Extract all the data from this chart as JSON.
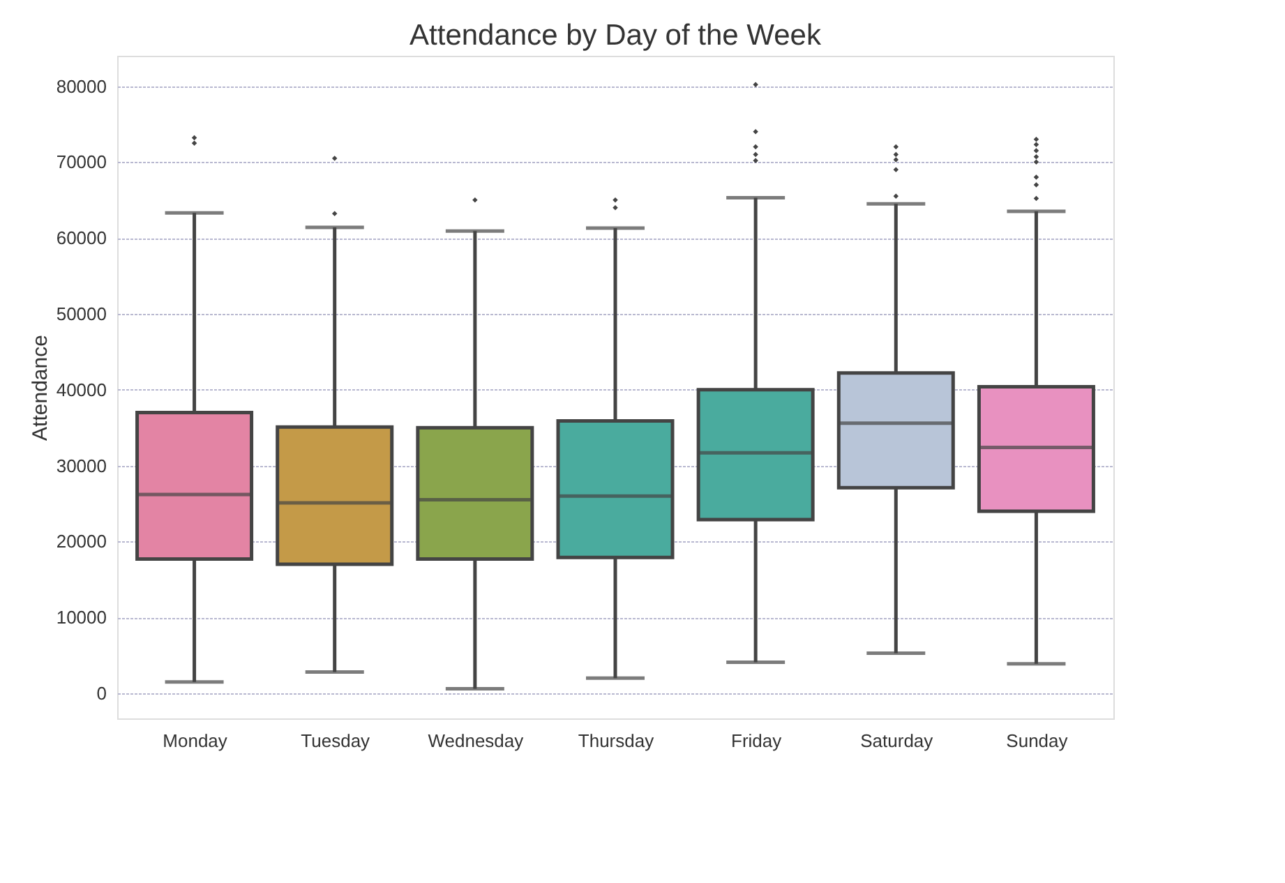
{
  "chart_data": {
    "type": "box",
    "title": "Attendance by Day of the Week",
    "ylabel": "Attendance",
    "categories": [
      "Monday",
      "Tuesday",
      "Wednesday",
      "Thursday",
      "Friday",
      "Saturday",
      "Sunday"
    ],
    "colors": [
      "#e384a4",
      "#c49a48",
      "#8aa54c",
      "#4aab9e",
      "#4aab9e",
      "#b8c5d8",
      "#e891c0"
    ],
    "boxes": [
      {
        "low": 1500,
        "q1": 17700,
        "median": 26200,
        "q3": 37000,
        "high": 63300,
        "outliers": [
          72500,
          73200
        ]
      },
      {
        "low": 2800,
        "q1": 17000,
        "median": 25100,
        "q3": 35100,
        "high": 61400,
        "outliers": [
          63200,
          70500
        ]
      },
      {
        "low": 600,
        "q1": 17700,
        "median": 25500,
        "q3": 35000,
        "high": 60900,
        "outliers": [
          65000
        ]
      },
      {
        "low": 2000,
        "q1": 17900,
        "median": 26000,
        "q3": 35900,
        "high": 61300,
        "outliers": [
          64000,
          65000
        ]
      },
      {
        "low": 4100,
        "q1": 22900,
        "median": 31700,
        "q3": 40000,
        "high": 65300,
        "outliers": [
          70200,
          71000,
          72000,
          74000,
          80200
        ]
      },
      {
        "low": 5300,
        "q1": 27100,
        "median": 35600,
        "q3": 42200,
        "high": 64500,
        "outliers": [
          65500,
          69000,
          70300,
          71000,
          72000
        ]
      },
      {
        "low": 3900,
        "q1": 24000,
        "median": 32400,
        "q3": 40400,
        "high": 63500,
        "outliers": [
          65200,
          67000,
          68000,
          70000,
          70700,
          71500,
          72300,
          73000
        ]
      }
    ],
    "ylim": [
      -3300,
      84000
    ],
    "yticks": [
      0,
      10000,
      20000,
      30000,
      40000,
      50000,
      60000,
      70000,
      80000
    ],
    "grid": "y",
    "legend": false
  }
}
